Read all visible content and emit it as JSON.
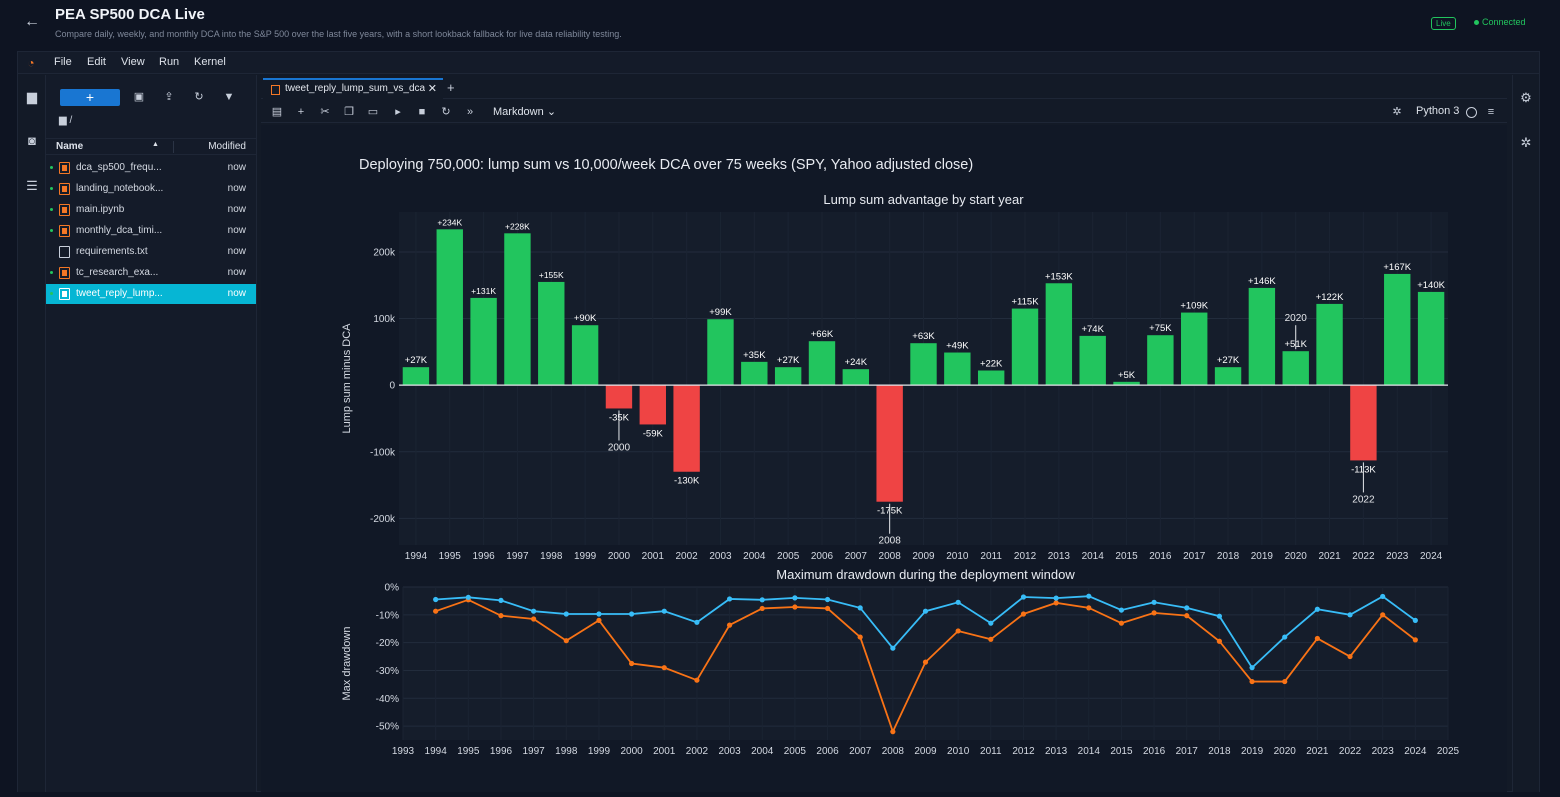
{
  "app": {
    "title": "PEA SP500 DCA Live",
    "subtitle": "Compare daily, weekly, and monthly DCA into the S&P 500 over the last five years, with a short lookback fallback for live data reliability testing.",
    "live_badge": "Live",
    "status": "Connected"
  },
  "menu": [
    "File",
    "Edit",
    "View",
    "Run",
    "Kernel"
  ],
  "filebrowser": {
    "new_label": "+",
    "path": "/",
    "col_name": "Name",
    "col_modified": "Modified",
    "files": [
      {
        "name": "dca_sp500_frequ...",
        "modified": "now",
        "type": "notebook",
        "running": true
      },
      {
        "name": "landing_notebook...",
        "modified": "now",
        "type": "notebook",
        "running": true
      },
      {
        "name": "main.ipynb",
        "modified": "now",
        "type": "notebook",
        "running": true
      },
      {
        "name": "monthly_dca_timi...",
        "modified": "now",
        "type": "notebook",
        "running": true
      },
      {
        "name": "requirements.txt",
        "modified": "now",
        "type": "text",
        "running": false
      },
      {
        "name": "tc_research_exa...",
        "modified": "now",
        "type": "notebook",
        "running": true
      },
      {
        "name": "tweet_reply_lump...",
        "modified": "now",
        "type": "notebook",
        "running": true,
        "selected": true
      }
    ]
  },
  "notebook": {
    "tab_label": "tweet_reply_lump_sum_vs_dca",
    "tab_close": "✕",
    "cell_type": "Markdown",
    "kernel": "Python 3"
  },
  "colors": {
    "accent": "#1976d2",
    "positive": "#22c55e",
    "negative": "#ef4444",
    "series_blue": "#38bdf8",
    "series_orange": "#f97316",
    "selected_file": "#06b6d4"
  },
  "figure_title": "Deploying 750,000: lump sum vs 10,000/week DCA over 75 weeks (SPY, Yahoo adjusted close)",
  "chart_data": [
    {
      "type": "bar",
      "title": "Lump sum advantage by start year",
      "ylabel": "Lump sum minus DCA",
      "ylim": [
        -240000,
        260000
      ],
      "yticks": [
        {
          "value": 200000,
          "label": "200k"
        },
        {
          "value": 100000,
          "label": "100k"
        },
        {
          "value": 0,
          "label": "0"
        },
        {
          "value": -100000,
          "label": "-100k"
        },
        {
          "value": -200000,
          "label": "-200k"
        }
      ],
      "categories": [
        "1994",
        "1995",
        "1996",
        "1997",
        "1998",
        "1999",
        "2000",
        "2001",
        "2002",
        "2003",
        "2004",
        "2005",
        "2006",
        "2007",
        "2008",
        "2009",
        "2010",
        "2011",
        "2012",
        "2013",
        "2014",
        "2015",
        "2016",
        "2017",
        "2018",
        "2019",
        "2020",
        "2021",
        "2022",
        "2023",
        "2024"
      ],
      "values": [
        27000,
        234000,
        131000,
        228000,
        155000,
        90000,
        -35000,
        -59000,
        -130000,
        99000,
        35000,
        27000,
        66000,
        24000,
        -175000,
        63000,
        49000,
        22000,
        115000,
        153000,
        74000,
        5000,
        75000,
        109000,
        27000,
        146000,
        51000,
        122000,
        -113000,
        167000,
        140000
      ],
      "labels": [
        "+27K",
        "+234K",
        "+131K",
        "+228K",
        "+155K",
        "+90K",
        "-35K",
        "-59K",
        "-130K",
        "+99K",
        "+35K",
        "+27K",
        "+66K",
        "+24K",
        "-175K",
        "+63K",
        "+49K",
        "+22K",
        "+115K",
        "+153K",
        "+74K",
        "+5K",
        "+75K",
        "+109K",
        "+27K",
        "+146K",
        "+51K",
        "+122K",
        "-113K",
        "+167K",
        "+140K"
      ],
      "annotations": [
        {
          "category": "2000",
          "text": "2000",
          "position": "below"
        },
        {
          "category": "2008",
          "text": "2008",
          "position": "below"
        },
        {
          "category": "2020",
          "text": "2020",
          "position": "above"
        },
        {
          "category": "2022",
          "text": "2022",
          "position": "below"
        }
      ],
      "grid": true
    },
    {
      "type": "line",
      "title": "Maximum drawdown during the deployment window",
      "ylabel": "Max drawdown",
      "ylim": [
        -55,
        0
      ],
      "yticks": [
        {
          "value": 0,
          "label": "0%"
        },
        {
          "value": -10,
          "label": "-10%"
        },
        {
          "value": -20,
          "label": "-20%"
        },
        {
          "value": -30,
          "label": "-30%"
        },
        {
          "value": -40,
          "label": "-40%"
        },
        {
          "value": -50,
          "label": "-50%"
        }
      ],
      "xlim": [
        1993,
        2025
      ],
      "xticks": [
        "1993",
        "1994",
        "1995",
        "1996",
        "1997",
        "1998",
        "1999",
        "2000",
        "2001",
        "2002",
        "2003",
        "2004",
        "2005",
        "2006",
        "2007",
        "2008",
        "2009",
        "2010",
        "2011",
        "2012",
        "2013",
        "2014",
        "2015",
        "2016",
        "2017",
        "2018",
        "2019",
        "2020",
        "2021",
        "2022",
        "2023",
        "2024",
        "2025"
      ],
      "x": [
        1994,
        1995,
        1996,
        1997,
        1998,
        1999,
        2000,
        2001,
        2002,
        2003,
        2004,
        2005,
        2006,
        2007,
        2008,
        2009,
        2010,
        2011,
        2012,
        2013,
        2014,
        2015,
        2016,
        2017,
        2018,
        2019,
        2020,
        2021,
        2022,
        2023,
        2024
      ],
      "series": [
        {
          "color": "#38bdf8",
          "values": [
            -4.5,
            -3.7,
            -4.8,
            -8.7,
            -9.7,
            -9.7,
            -9.7,
            -8.7,
            -12.7,
            -4.3,
            -4.6,
            -3.9,
            -4.5,
            -7.5,
            -22.0,
            -8.7,
            -5.5,
            -13.0,
            -3.6,
            -4.0,
            -3.3,
            -8.3,
            -5.5,
            -7.5,
            -10.5,
            -29.0,
            -18.0,
            -8.0,
            -10.0,
            -3.4,
            -12.0
          ]
        },
        {
          "color": "#f97316",
          "values": [
            -8.7,
            -4.6,
            -10.3,
            -11.5,
            -19.3,
            -12.0,
            -27.5,
            -29.0,
            -33.5,
            -13.7,
            -7.7,
            -7.2,
            -7.7,
            -18.0,
            -52.0,
            -27.0,
            -15.8,
            -18.8,
            -9.7,
            -5.7,
            -7.5,
            -13.0,
            -9.3,
            -10.3,
            -19.5,
            -34.0,
            -34.0,
            -18.5,
            -25.0,
            -10.0,
            -19.0
          ]
        }
      ],
      "grid": true
    }
  ]
}
